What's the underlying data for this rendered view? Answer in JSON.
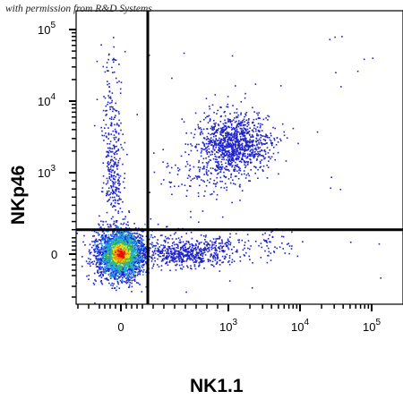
{
  "permission_note": "with permission from R&D Systems",
  "chart_data": {
    "type": "scatter",
    "title": "",
    "xlabel": "NK1.1",
    "ylabel": "NKp46",
    "x_scale": "biexponential",
    "y_scale": "biexponential",
    "x_ticks": [
      {
        "value": 0,
        "label": "0",
        "exp": ""
      },
      {
        "value": 1000,
        "label": "10",
        "exp": "3"
      },
      {
        "value": 10000,
        "label": "10",
        "exp": "4"
      },
      {
        "value": 100000,
        "label": "10",
        "exp": "5"
      }
    ],
    "y_ticks": [
      {
        "value": 0,
        "label": "0",
        "exp": ""
      },
      {
        "value": 1000,
        "label": "10",
        "exp": "3"
      },
      {
        "value": 10000,
        "label": "10",
        "exp": "4"
      },
      {
        "value": 100000,
        "label": "10",
        "exp": "5"
      }
    ],
    "gates": {
      "x": 250,
      "y": 300
    },
    "populations": [
      {
        "name": "",
        "x_center": 0,
        "y_center": 0,
        "density": "high"
      },
      {
        "name": "",
        "x_center": 1200,
        "y_center": 2600,
        "density": "medium"
      },
      {
        "name": "",
        "x_center": 600,
        "y_center": 0,
        "density": "low"
      }
    ],
    "colormap": [
      "#1e22c8",
      "#1e90ff",
      "#20c0c0",
      "#40c040",
      "#f0e020",
      "#ff8000",
      "#e01010"
    ],
    "grid": false
  }
}
